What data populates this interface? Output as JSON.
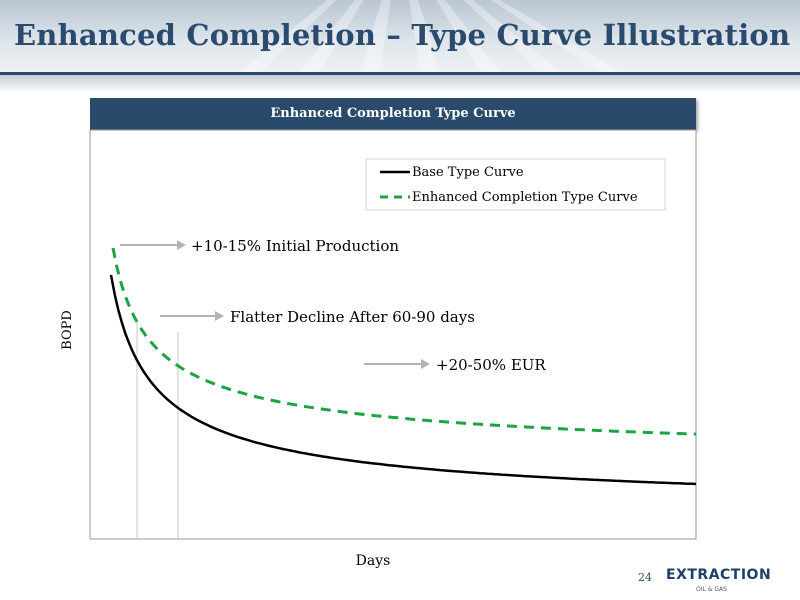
{
  "slide": {
    "title": "Enhanced Completion – Type Curve Illustration",
    "page_number": "24",
    "logo_text": "EXTRACTION",
    "logo_subtext": "OIL & GAS"
  },
  "colors": {
    "title": "#2a4a6e",
    "banner": "#2a4a6b",
    "base_curve": "#000000",
    "enhanced_curve": "#1aa542",
    "arrow": "#b3b3b3"
  },
  "chart_data": {
    "type": "line",
    "title": "Enhanced Completion Type Curve",
    "xlabel": "Days",
    "ylabel": "BOPD",
    "legend_position": "top-right",
    "grid": false,
    "series": [
      {
        "name": "Base Type Curve",
        "style": "solid",
        "color": "#000000"
      },
      {
        "name": "Enhanced Completion Type Curve",
        "style": "dashed",
        "color": "#1aa542"
      }
    ],
    "annotations": [
      {
        "text": "+10-15% Initial Production"
      },
      {
        "text": "Flatter Decline After 60-90 days"
      },
      {
        "text": "+20-50% EUR"
      }
    ]
  }
}
